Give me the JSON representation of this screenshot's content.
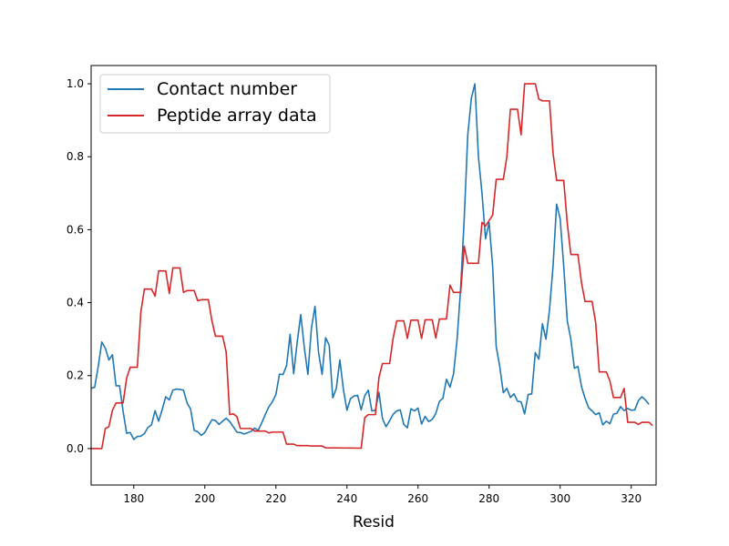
{
  "chart_data": {
    "type": "line",
    "xlabel": "Resid",
    "ylabel": "",
    "xlim": [
      168,
      327
    ],
    "ylim": [
      -0.1,
      1.05
    ],
    "x_ticks": [
      180,
      200,
      220,
      240,
      260,
      280,
      300,
      320
    ],
    "y_ticks": [
      0.0,
      0.2,
      0.4,
      0.6,
      0.8,
      1.0
    ],
    "x_tick_labels": [
      "180",
      "200",
      "220",
      "240",
      "260",
      "280",
      "300",
      "320"
    ],
    "y_tick_labels": [
      "0.0",
      "0.2",
      "0.4",
      "0.6",
      "0.8",
      "1.0"
    ],
    "grid": false,
    "legend_position": "top-left",
    "series": [
      {
        "name": "Contact number",
        "color": "#1f77b4",
        "points": [
          [
            168,
            0.165
          ],
          [
            169,
            0.168
          ],
          [
            170,
            0.225
          ],
          [
            171,
            0.292
          ],
          [
            172,
            0.275
          ],
          [
            173,
            0.243
          ],
          [
            174,
            0.257
          ],
          [
            175,
            0.172
          ],
          [
            176,
            0.172
          ],
          [
            177,
            0.102
          ],
          [
            178,
            0.042
          ],
          [
            179,
            0.044
          ],
          [
            180,
            0.025
          ],
          [
            181,
            0.033
          ],
          [
            182,
            0.034
          ],
          [
            183,
            0.041
          ],
          [
            184,
            0.058
          ],
          [
            185,
            0.065
          ],
          [
            186,
            0.104
          ],
          [
            187,
            0.075
          ],
          [
            188,
            0.107
          ],
          [
            189,
            0.142
          ],
          [
            190,
            0.133
          ],
          [
            191,
            0.16
          ],
          [
            192,
            0.163
          ],
          [
            193,
            0.162
          ],
          [
            194,
            0.16
          ],
          [
            195,
            0.125
          ],
          [
            196,
            0.108
          ],
          [
            197,
            0.05
          ],
          [
            198,
            0.046
          ],
          [
            199,
            0.036
          ],
          [
            200,
            0.044
          ],
          [
            201,
            0.062
          ],
          [
            202,
            0.079
          ],
          [
            203,
            0.077
          ],
          [
            204,
            0.066
          ],
          [
            205,
            0.075
          ],
          [
            206,
            0.083
          ],
          [
            207,
            0.074
          ],
          [
            208,
            0.06
          ],
          [
            209,
            0.045
          ],
          [
            210,
            0.044
          ],
          [
            211,
            0.04
          ],
          [
            212,
            0.043
          ],
          [
            213,
            0.047
          ],
          [
            214,
            0.056
          ],
          [
            215,
            0.05
          ],
          [
            216,
            0.07
          ],
          [
            217,
            0.093
          ],
          [
            218,
            0.114
          ],
          [
            219,
            0.128
          ],
          [
            220,
            0.148
          ],
          [
            221,
            0.204
          ],
          [
            222,
            0.203
          ],
          [
            223,
            0.227
          ],
          [
            224,
            0.313
          ],
          [
            225,
            0.205
          ],
          [
            226,
            0.292
          ],
          [
            227,
            0.367
          ],
          [
            228,
            0.277
          ],
          [
            229,
            0.203
          ],
          [
            230,
            0.33
          ],
          [
            231,
            0.39
          ],
          [
            232,
            0.264
          ],
          [
            233,
            0.203
          ],
          [
            234,
            0.304
          ],
          [
            235,
            0.283
          ],
          [
            236,
            0.139
          ],
          [
            237,
            0.165
          ],
          [
            238,
            0.243
          ],
          [
            239,
            0.162
          ],
          [
            240,
            0.105
          ],
          [
            241,
            0.137
          ],
          [
            242,
            0.144
          ],
          [
            243,
            0.146
          ],
          [
            244,
            0.106
          ],
          [
            245,
            0.145
          ],
          [
            246,
            0.16
          ],
          [
            247,
            0.103
          ],
          [
            248,
            0.105
          ],
          [
            249,
            0.154
          ],
          [
            250,
            0.082
          ],
          [
            251,
            0.06
          ],
          [
            252,
            0.076
          ],
          [
            253,
            0.094
          ],
          [
            254,
            0.103
          ],
          [
            255,
            0.106
          ],
          [
            256,
            0.066
          ],
          [
            257,
            0.057
          ],
          [
            258,
            0.109
          ],
          [
            259,
            0.103
          ],
          [
            260,
            0.111
          ],
          [
            261,
            0.067
          ],
          [
            262,
            0.088
          ],
          [
            263,
            0.074
          ],
          [
            264,
            0.08
          ],
          [
            265,
            0.096
          ],
          [
            266,
            0.129
          ],
          [
            267,
            0.138
          ],
          [
            268,
            0.19
          ],
          [
            269,
            0.168
          ],
          [
            270,
            0.205
          ],
          [
            271,
            0.3
          ],
          [
            272,
            0.44
          ],
          [
            273,
            0.63
          ],
          [
            274,
            0.86
          ],
          [
            275,
            0.96
          ],
          [
            276,
            1.0
          ],
          [
            277,
            0.8
          ],
          [
            278,
            0.7
          ],
          [
            279,
            0.575
          ],
          [
            280,
            0.62
          ],
          [
            281,
            0.5
          ],
          [
            282,
            0.28
          ],
          [
            283,
            0.225
          ],
          [
            284,
            0.153
          ],
          [
            285,
            0.165
          ],
          [
            286,
            0.14
          ],
          [
            287,
            0.15
          ],
          [
            288,
            0.13
          ],
          [
            289,
            0.128
          ],
          [
            290,
            0.095
          ],
          [
            291,
            0.148
          ],
          [
            292,
            0.15
          ],
          [
            293,
            0.263
          ],
          [
            294,
            0.245
          ],
          [
            295,
            0.342
          ],
          [
            296,
            0.3
          ],
          [
            297,
            0.38
          ],
          [
            298,
            0.5
          ],
          [
            299,
            0.67
          ],
          [
            300,
            0.63
          ],
          [
            301,
            0.5
          ],
          [
            302,
            0.35
          ],
          [
            303,
            0.3
          ],
          [
            304,
            0.22
          ],
          [
            305,
            0.225
          ],
          [
            306,
            0.17
          ],
          [
            307,
            0.138
          ],
          [
            308,
            0.112
          ],
          [
            309,
            0.103
          ],
          [
            310,
            0.093
          ],
          [
            311,
            0.098
          ],
          [
            312,
            0.065
          ],
          [
            313,
            0.075
          ],
          [
            314,
            0.068
          ],
          [
            315,
            0.094
          ],
          [
            316,
            0.097
          ],
          [
            317,
            0.115
          ],
          [
            318,
            0.104
          ],
          [
            319,
            0.11
          ],
          [
            320,
            0.105
          ],
          [
            321,
            0.106
          ],
          [
            322,
            0.131
          ],
          [
            323,
            0.142
          ],
          [
            324,
            0.133
          ],
          [
            325,
            0.121
          ]
        ]
      },
      {
        "name": "Peptide array data",
        "color": "#d62728",
        "points": [
          [
            168,
            0.0
          ],
          [
            171,
            0.0
          ],
          [
            172,
            0.055
          ],
          [
            173,
            0.06
          ],
          [
            174,
            0.105
          ],
          [
            175,
            0.125
          ],
          [
            177,
            0.125
          ],
          [
            178,
            0.193
          ],
          [
            179,
            0.223
          ],
          [
            181,
            0.223
          ],
          [
            182,
            0.375
          ],
          [
            183,
            0.437
          ],
          [
            185,
            0.437
          ],
          [
            186,
            0.418
          ],
          [
            187,
            0.487
          ],
          [
            189,
            0.487
          ],
          [
            190,
            0.425
          ],
          [
            191,
            0.495
          ],
          [
            193,
            0.495
          ],
          [
            194,
            0.428
          ],
          [
            195,
            0.433
          ],
          [
            197,
            0.433
          ],
          [
            198,
            0.405
          ],
          [
            199,
            0.408
          ],
          [
            201,
            0.408
          ],
          [
            202,
            0.35
          ],
          [
            203,
            0.308
          ],
          [
            205,
            0.308
          ],
          [
            206,
            0.265
          ],
          [
            207,
            0.093
          ],
          [
            208,
            0.095
          ],
          [
            209,
            0.088
          ],
          [
            210,
            0.055
          ],
          [
            213,
            0.055
          ],
          [
            214,
            0.048
          ],
          [
            217,
            0.048
          ],
          [
            218,
            0.043
          ],
          [
            219,
            0.045
          ],
          [
            222,
            0.045
          ],
          [
            223,
            0.012
          ],
          [
            225,
            0.012
          ],
          [
            226,
            0.008
          ],
          [
            229,
            0.008
          ],
          [
            230,
            0.007
          ],
          [
            232,
            0.007
          ],
          [
            233,
            0.007
          ],
          [
            234,
            0.002
          ],
          [
            244,
            0.001
          ],
          [
            245,
            0.085
          ],
          [
            246,
            0.093
          ],
          [
            248,
            0.093
          ],
          [
            249,
            0.195
          ],
          [
            250,
            0.233
          ],
          [
            252,
            0.233
          ],
          [
            253,
            0.303
          ],
          [
            254,
            0.35
          ],
          [
            256,
            0.35
          ],
          [
            257,
            0.302
          ],
          [
            258,
            0.352
          ],
          [
            260,
            0.352
          ],
          [
            261,
            0.302
          ],
          [
            262,
            0.353
          ],
          [
            264,
            0.353
          ],
          [
            265,
            0.303
          ],
          [
            266,
            0.355
          ],
          [
            268,
            0.355
          ],
          [
            269,
            0.448
          ],
          [
            270,
            0.428
          ],
          [
            272,
            0.428
          ],
          [
            273,
            0.555
          ],
          [
            274,
            0.508
          ],
          [
            277,
            0.508
          ],
          [
            278,
            0.62
          ],
          [
            279,
            0.61
          ],
          [
            281,
            0.64
          ],
          [
            282,
            0.738
          ],
          [
            284,
            0.738
          ],
          [
            285,
            0.8
          ],
          [
            286,
            0.93
          ],
          [
            288,
            0.93
          ],
          [
            289,
            0.86
          ],
          [
            290,
            1.0
          ],
          [
            293,
            1.0
          ],
          [
            294,
            0.958
          ],
          [
            295,
            0.953
          ],
          [
            297,
            0.953
          ],
          [
            298,
            0.81
          ],
          [
            299,
            0.735
          ],
          [
            301,
            0.735
          ],
          [
            302,
            0.618
          ],
          [
            303,
            0.532
          ],
          [
            305,
            0.532
          ],
          [
            306,
            0.455
          ],
          [
            307,
            0.403
          ],
          [
            309,
            0.403
          ],
          [
            310,
            0.345
          ],
          [
            311,
            0.21
          ],
          [
            313,
            0.21
          ],
          [
            314,
            0.185
          ],
          [
            315,
            0.14
          ],
          [
            317,
            0.14
          ],
          [
            318,
            0.165
          ],
          [
            319,
            0.072
          ],
          [
            321,
            0.072
          ],
          [
            322,
            0.066
          ],
          [
            323,
            0.072
          ],
          [
            325,
            0.072
          ],
          [
            326,
            0.063
          ]
        ]
      }
    ]
  }
}
